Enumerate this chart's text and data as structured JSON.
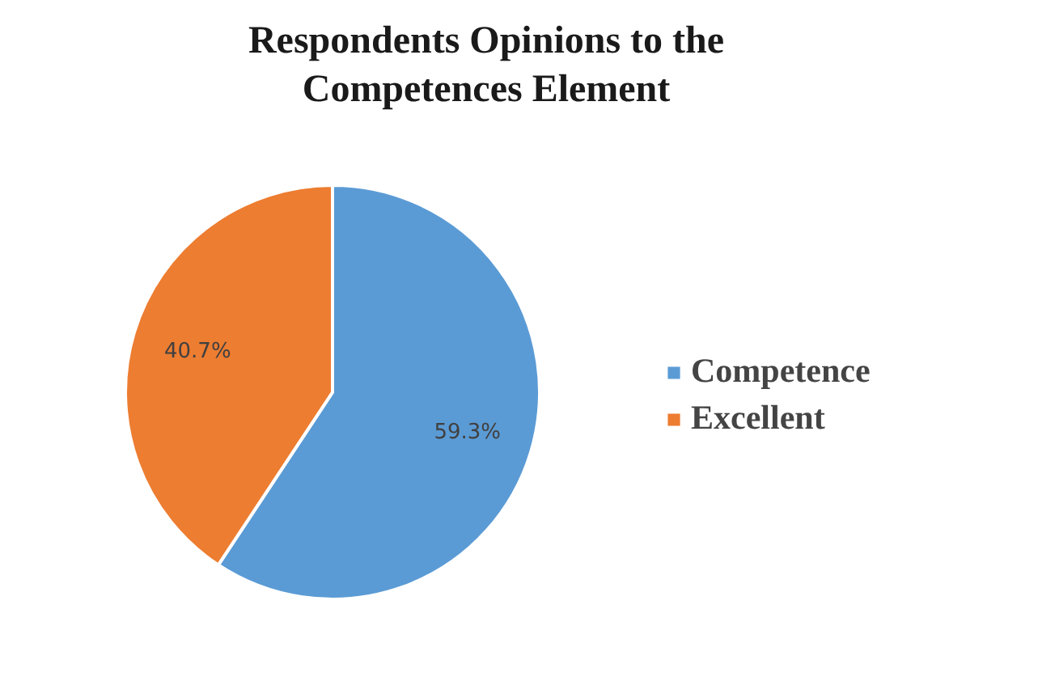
{
  "chart_data": {
    "type": "pie",
    "title": "Respondents Opinions to the Competences Element",
    "categories": [
      "Competence",
      "Excellent"
    ],
    "values": [
      59.3,
      40.7
    ],
    "colors": [
      "#5b9bd5",
      "#ed7d31"
    ],
    "value_labels": [
      "59.3%",
      "40.7%"
    ],
    "legend": "right"
  }
}
